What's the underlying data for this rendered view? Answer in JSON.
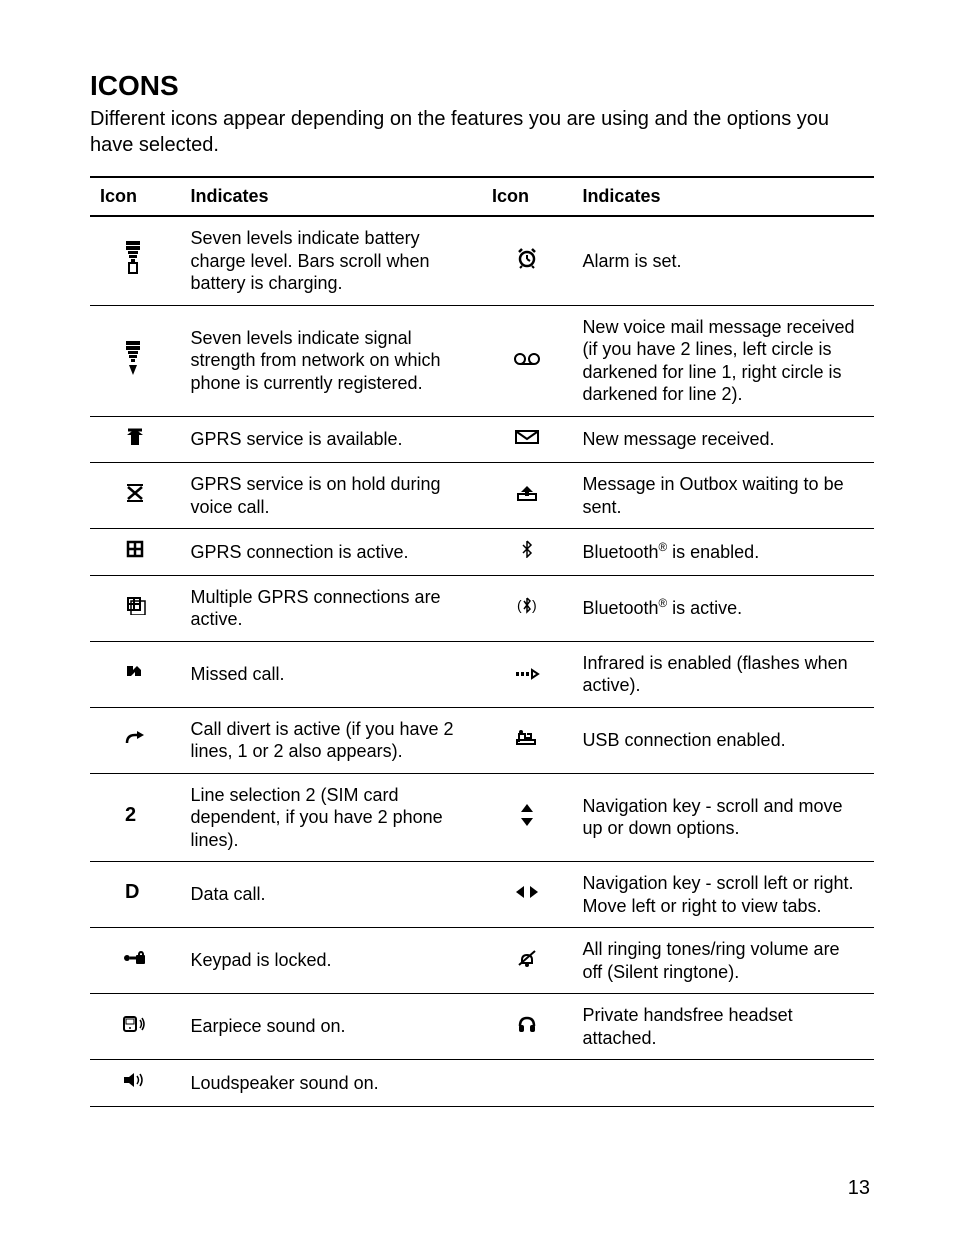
{
  "page": {
    "title": "ICONS",
    "intro": "Different icons appear depending on the features you are using and the options you have selected.",
    "pageNumber": "13"
  },
  "table": {
    "headers": {
      "iconLeft": "Icon",
      "indicatesLeft": "Indicates",
      "iconRight": "Icon",
      "indicatesRight": "Indicates"
    },
    "rows": [
      {
        "left": {
          "iconName": "battery-level-icon",
          "description": "Seven levels indicate battery charge level. Bars scroll when battery is charging."
        },
        "right": {
          "iconName": "alarm-clock-icon",
          "description": "Alarm is set."
        }
      },
      {
        "left": {
          "iconName": "signal-strength-icon",
          "description": "Seven levels indicate signal strength from network on which phone is currently registered."
        },
        "right": {
          "iconName": "voicemail-icon",
          "description": "New voice mail message received (if you have 2 lines, left circle is darkened for line 1, right circle is darkened for line 2)."
        }
      },
      {
        "left": {
          "iconName": "gprs-available-icon",
          "description": "GPRS service is available."
        },
        "right": {
          "iconName": "new-message-icon",
          "description": "New message received."
        }
      },
      {
        "left": {
          "iconName": "gprs-hold-icon",
          "description": "GPRS service is on hold during voice call."
        },
        "right": {
          "iconName": "outbox-icon",
          "description": "Message in Outbox waiting to be sent."
        }
      },
      {
        "left": {
          "iconName": "gprs-active-icon",
          "description": "GPRS connection is active."
        },
        "right": {
          "iconName": "bluetooth-enabled-icon",
          "descriptionHtml": "Bluetooth<sup>®</sup> is enabled."
        }
      },
      {
        "left": {
          "iconName": "gprs-multi-icon",
          "description": "Multiple GPRS connections are active."
        },
        "right": {
          "iconName": "bluetooth-active-icon",
          "descriptionHtml": "Bluetooth<sup>®</sup> is active."
        }
      },
      {
        "left": {
          "iconName": "missed-call-icon",
          "description": "Missed call."
        },
        "right": {
          "iconName": "infrared-icon",
          "description": "Infrared is enabled (flashes when active)."
        }
      },
      {
        "left": {
          "iconName": "call-divert-icon",
          "description": "Call divert is active (if you have 2 lines, 1 or 2 also appears)."
        },
        "right": {
          "iconName": "usb-icon",
          "description": "USB connection enabled."
        }
      },
      {
        "left": {
          "iconName": "line-2-icon",
          "description": "Line selection 2\n(SIM card dependent, if you have 2 phone lines)."
        },
        "right": {
          "iconName": "nav-updown-icon",
          "description": "Navigation key - scroll and move up or down options."
        }
      },
      {
        "left": {
          "iconName": "data-call-icon",
          "description": "Data call."
        },
        "right": {
          "iconName": "nav-leftright-icon",
          "description": "Navigation key - scroll left or right. Move left or right to view tabs."
        }
      },
      {
        "left": {
          "iconName": "keypad-locked-icon",
          "description": "Keypad is locked."
        },
        "right": {
          "iconName": "silent-icon",
          "description": "All ringing tones/ring volume are off (Silent ringtone)."
        }
      },
      {
        "left": {
          "iconName": "earpiece-icon",
          "description": "Earpiece sound on."
        },
        "right": {
          "iconName": "headset-icon",
          "description": "Private handsfree headset attached."
        }
      },
      {
        "left": {
          "iconName": "loudspeaker-icon",
          "description": "Loudspeaker sound on."
        },
        "right": {
          "iconName": "",
          "description": ""
        }
      }
    ]
  },
  "icons": {
    "battery-level-icon": "<svg width='22' height='34' viewBox='0 0 22 34'><rect x='2' y='0' width='14' height='4' fill='#000'/><rect x='2' y='5' width='14' height='4' fill='#000'/><rect x='4' y='10' width='10' height='3' fill='#000'/><rect x='5' y='14' width='8' height='3' fill='#000'/><rect x='7' y='18' width='4' height='3' fill='#000'/><rect x='5' y='22' width='8' height='10' fill='none' stroke='#000' stroke-width='2'/></svg>",
    "signal-strength-icon": "<svg width='22' height='34' viewBox='0 0 22 34'><rect x='2' y='0' width='14' height='4' fill='#000'/><rect x='2' y='5' width='14' height='4' fill='#000'/><rect x='4' y='10' width='10' height='3' fill='#000'/><rect x='5' y='14' width='8' height='3' fill='#000'/><rect x='7' y='18' width='4' height='3' fill='#000'/><path d='M5 24 L9 34 L13 24 Z' fill='#000'/></svg>",
    "gprs-available-icon": "<svg width='22' height='20' viewBox='0 0 22 20'><path d='M11 2 L19 8 L15 8 L15 18 L7 18 L7 8 L3 8 Z' fill='#000'/><line x1='4' y1='3' x2='18' y2='3' stroke='#000' stroke-width='3'/></svg>",
    "gprs-hold-icon": "<svg width='22' height='20' viewBox='0 0 22 20'><line x1='4' y1='4' x2='18' y2='16' stroke='#000' stroke-width='2.5'/><line x1='18' y1='4' x2='4' y2='16' stroke='#000' stroke-width='2.5'/><line x1='3' y1='2' x2='19' y2='2' stroke='#000' stroke-width='2'/><line x1='3' y1='18' x2='19' y2='18' stroke='#000' stroke-width='2'/></svg>",
    "gprs-active-icon": "<svg width='22' height='20' viewBox='0 0 22 20'><rect x='4' y='3' width='14' height='14' fill='none' stroke='#000' stroke-width='2.5'/><line x1='4' y1='10' x2='18' y2='10' stroke='#000' stroke-width='2.5'/><line x1='11' y1='3' x2='11' y2='17' stroke='#000' stroke-width='2.5'/></svg>",
    "gprs-multi-icon": "<svg width='22' height='20' viewBox='0 0 22 20'><rect x='3' y='2' width='14' height='14' fill='#000'/><rect x='5' y='4' width='4' height='4' fill='#fff'/><rect x='11' y='4' width='4' height='4' fill='#fff'/><rect x='5' y='10' width='4' height='4' fill='#fff'/><rect x='11' y='10' width='4' height='4' fill='#fff'/><rect x='7' y='6' width='14' height='14' fill='none' stroke='#000' stroke-width='1.5'/></svg>",
    "missed-call-icon": "<svg width='24' height='18' viewBox='0 0 24 18'><path d='M4 14 L4 4 L10 4 L10 8 L14 4 L18 8 L18 14 L12 14 L12 10 L8 14 Z' fill='#000'/></svg>",
    "call-divert-icon": "<svg width='24' height='16' viewBox='0 0 24 16'><path d='M4 13 Q4 5 12 5 L17 5' fill='none' stroke='#000' stroke-width='2.5'/><path d='M14 1 L21 5 L14 9 Z' fill='#000'/></svg>",
    "line-2-icon": "<svg width='20' height='20' viewBox='0 0 20 20'><text x='0' y='16' font-family='Arial' font-size='20' font-weight='bold' fill='#000'>2</text></svg>",
    "data-call-icon": "<svg width='20' height='20' viewBox='0 0 20 20'><text x='0' y='16' font-family='Arial' font-size='20' font-weight='bold' fill='#000'>D</text></svg>",
    "keypad-locked-icon": "<svg width='26' height='16' viewBox='0 0 26 16'><rect x='14' y='5' width='9' height='9' rx='1' fill='#000'/><path d='M17 5 Q17 2 19 2 Q21 2 21 5' fill='none' stroke='#000' stroke-width='2'/><circle cx='5' cy='8' r='3' fill='#000'/><line x1='8' y1='8' x2='14' y2='8' stroke='#000' stroke-width='3'/></svg>",
    "earpiece-icon": "<svg width='26' height='20' viewBox='0 0 26 20'><rect x='2' y='3' width='12' height='14' rx='2' fill='none' stroke='#000' stroke-width='2'/><rect x='4' y='5' width='8' height='5' fill='none' stroke='#000' stroke-width='1'/><circle cx='8' cy='14' r='1' fill='#000'/><path d='M18 6 Q21 10 18 14' fill='none' stroke='#000' stroke-width='1.5'/><path d='M20 4 Q24 10 20 16' fill='none' stroke='#000' stroke-width='1.5'/></svg>",
    "loudspeaker-icon": "<svg width='26' height='20' viewBox='0 0 26 20'><rect x='2' y='7' width='5' height='6' fill='#000'/><path d='M7 7 L12 3 L12 17 L7 13 Z' fill='#000'/><path d='M15 6 Q18 10 15 14' fill='none' stroke='#000' stroke-width='1.5'/><path d='M18 4 Q22 10 18 16' fill='none' stroke='#000' stroke-width='1.5'/></svg>",
    "alarm-clock-icon": "<svg width='22' height='22' viewBox='0 0 22 22'><circle cx='11' cy='12' r='7' fill='none' stroke='#000' stroke-width='2.5'/><line x1='11' y1='12' x2='11' y2='8' stroke='#000' stroke-width='2'/><line x1='11' y1='12' x2='14' y2='14' stroke='#000' stroke-width='2'/><line x1='3' y1='5' x2='6' y2='2' stroke='#000' stroke-width='2.5'/><line x1='19' y1='5' x2='16' y2='2' stroke='#000' stroke-width='2.5'/><line x1='6' y1='19' x2='4' y2='21' stroke='#000' stroke-width='2'/><line x1='16' y1='19' x2='18' y2='21' stroke='#000' stroke-width='2'/></svg>",
    "voicemail-icon": "<svg width='28' height='14' viewBox='0 0 28 14'><circle cx='7' cy='7' r='5' fill='none' stroke='#000' stroke-width='2'/><circle cx='21' cy='7' r='5' fill='none' stroke='#000' stroke-width='2'/><line x1='7' y1='12' x2='21' y2='12' stroke='#000' stroke-width='2'/></svg>",
    "new-message-icon": "<svg width='26' height='16' viewBox='0 0 26 16'><rect x='2' y='2' width='22' height='12' fill='none' stroke='#000' stroke-width='2'/><path d='M3 3 L13 10 L23 3' fill='none' stroke='#000' stroke-width='2'/></svg>",
    "outbox-icon": "<svg width='24' height='18' viewBox='0 0 24 18'><rect x='3' y='10' width='18' height='6' fill='none' stroke='#000' stroke-width='2'/><path d='M12 2 L18 8 L14 8 L14 12 L10 12 L10 8 L6 8 Z' fill='#000'/></svg>",
    "bluetooth-enabled-icon": "<svg width='12' height='18' viewBox='0 0 12 18'><path d='M6 1 L10 5 L6 9 L10 13 L6 17 L6 1 M2 5 L6 9 M2 13 L6 9' fill='none' stroke='#000' stroke-width='1.5'/></svg>",
    "bluetooth-active-icon": "<svg width='22' height='18' viewBox='0 0 22 18'><text x='1' y='14' font-size='14' fill='#000'>(</text><path d='M11 2 L14 5 L11 9 L14 13 L11 16 L11 2 M8 5 L11 9 M8 13 L11 9' fill='none' stroke='#000' stroke-width='1.5'/><text x='16' y='14' font-size='14' fill='#000'>)</text></svg>",
    "infrared-icon": "<svg width='26' height='12' viewBox='0 0 26 12'><rect x='2' y='4' width='3' height='4' fill='#000'/><rect x='7' y='4' width='3' height='4' fill='#000'/><rect x='12' y='4' width='3' height='4' fill='#000'/><path d='M18 2 L18 10 L24 6 Z' fill='none' stroke='#000' stroke-width='2'/></svg>",
    "usb-icon": "<svg width='24' height='18' viewBox='0 0 24 18'><path d='M4 14 L4 6 L10 6 L10 10 L16 10 L16 6 L12 6' fill='none' stroke='#000' stroke-width='2'/><rect x='2' y='12' width='18' height='4' fill='none' stroke='#000' stroke-width='2'/><circle cx='6' cy='4' r='2' fill='#000'/></svg>",
    "nav-updown-icon": "<svg width='16' height='26' viewBox='0 0 16 26'><path d='M8 2 L14 10 L2 10 Z' fill='#000'/><path d='M8 24 L14 16 L2 16 Z' fill='#000'/></svg>",
    "nav-leftright-icon": "<svg width='26' height='16' viewBox='0 0 26 16'><path d='M2 8 L10 2 L10 14 Z' fill='#000'/><path d='M24 8 L16 2 L16 14 Z' fill='#000'/></svg>",
    "silent-icon": "<svg width='22' height='20' viewBox='0 0 22 20'><path d='M6 12 Q6 7 11 7 Q16 7 16 12 L16 15 L6 15 Z' fill='none' stroke='#000' stroke-width='2'/><circle cx='11' cy='17' r='2' fill='#000'/><line x1='3' y1='17' x2='19' y2='3' stroke='#000' stroke-width='2'/></svg>",
    "headset-icon": "<svg width='22' height='20' viewBox='0 0 22 20'><path d='M4 12 Q4 4 11 4 Q18 4 18 12' fill='none' stroke='#000' stroke-width='2.5'/><rect x='3' y='11' width='5' height='7' rx='2' fill='#000'/><rect x='14' y='11' width='5' height='7' rx='2' fill='#000'/></svg>"
  },
  "style": {
    "pageWidth": 954,
    "pageHeight": 1248,
    "fontFamily": "Arial, Helvetica, sans-serif",
    "titleFontSize": 28,
    "bodyFontSize": 20,
    "tableFontSize": 18,
    "textColor": "#000000",
    "backgroundColor": "#ffffff",
    "tableBorderColor": "#000000",
    "headerBorderWidth": 2,
    "rowBorderWidth": 1,
    "iconColWidth": 70,
    "indicatesColWidth": 280
  }
}
